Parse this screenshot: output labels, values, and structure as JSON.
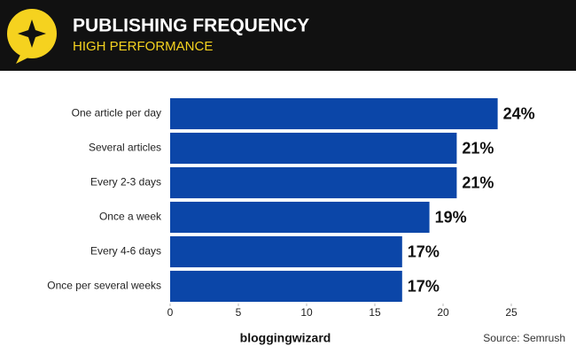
{
  "chart_data": {
    "type": "barh",
    "title": "PUBLISHING FREQUENCY",
    "subtitle": "HIGH PERFORMANCE",
    "categories": [
      "One article per day",
      "Several articles",
      "Every 2-3 days",
      "Once a week",
      "Every 4-6 days",
      "Once per several weeks"
    ],
    "values": [
      24,
      21,
      21,
      19,
      17,
      17
    ],
    "value_labels": [
      "24%",
      "21%",
      "21%",
      "19%",
      "17%",
      "17%"
    ],
    "color": "#0b46a8",
    "xlim": [
      0,
      25
    ],
    "xticks": [
      0,
      5,
      10,
      15,
      20,
      25
    ],
    "brand": "bloggingwizard",
    "source": "Source: Semrush"
  }
}
